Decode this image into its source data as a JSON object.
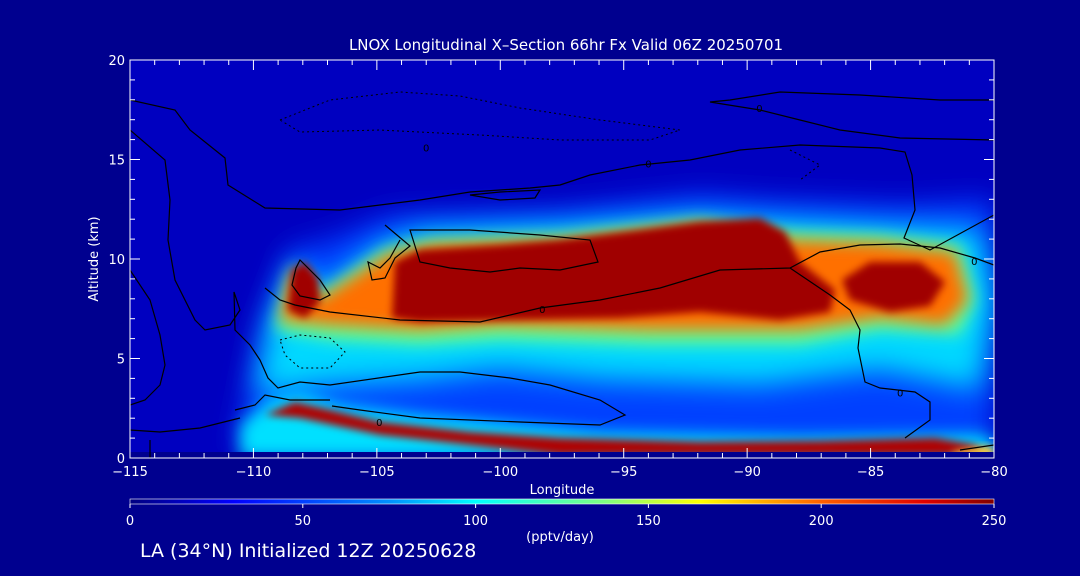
{
  "chart_data": {
    "type": "heatmap",
    "title": "LNOX Longitudinal X–Section 66hr  Fx Valid 06Z 20250701",
    "xlabel": "Longitude",
    "ylabel": "Altitude (km)",
    "xlim": [
      -115,
      -80
    ],
    "ylim": [
      0,
      20
    ],
    "x_ticks": [
      -115,
      -110,
      -105,
      -100,
      -95,
      -90,
      -85,
      -80
    ],
    "x_tick_labels": [
      "−115",
      "−110",
      "−105",
      "−100",
      "−95",
      "−90",
      "−85",
      "−80"
    ],
    "y_ticks": [
      0,
      5,
      10,
      15,
      20
    ],
    "y_tick_labels": [
      "0",
      "5",
      "10",
      "15",
      "20"
    ],
    "colorbar": {
      "label": "(pptv/day)",
      "range": [
        0,
        250
      ],
      "ticks": [
        0,
        50,
        100,
        150,
        200,
        250
      ],
      "tick_labels": [
        "0",
        "50",
        "100",
        "150",
        "200",
        "250"
      ]
    },
    "contour_labels": [
      {
        "text": "0",
        "lon": -103.0,
        "alt": 15.6
      },
      {
        "text": "0",
        "lon": -94.0,
        "alt": 14.8
      },
      {
        "text": "0",
        "lon": -89.5,
        "alt": 17.6
      },
      {
        "text": "0",
        "lon": -98.3,
        "alt": 7.5
      },
      {
        "text": "0",
        "lon": -83.8,
        "alt": 3.3
      },
      {
        "text": "0",
        "lon": -104.9,
        "alt": 1.8
      },
      {
        "text": "0",
        "lon": -80.8,
        "alt": 9.9
      }
    ]
  },
  "footer": {
    "label": "LA (34°N) Initialized 12Z 20250628"
  }
}
